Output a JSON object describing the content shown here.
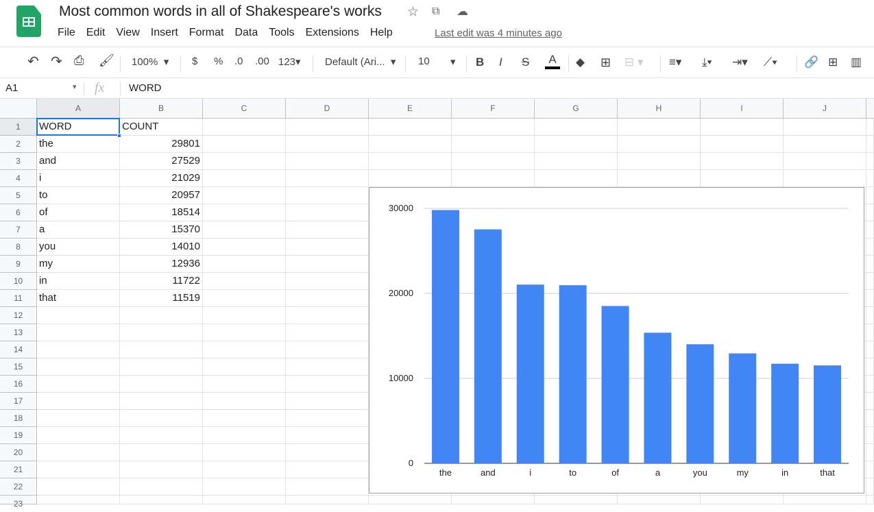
{
  "app": {
    "title": "Most common words in all of Shakespeare's works",
    "last_edit": "Last edit was 4 minutes ago",
    "menu": [
      "File",
      "Edit",
      "View",
      "Insert",
      "Format",
      "Data",
      "Tools",
      "Extensions",
      "Help"
    ]
  },
  "toolbar": {
    "zoom": "100%",
    "currency": "$",
    "percent": "%",
    "dec_decrease": ".0",
    "dec_increase": ".00",
    "format_more": "123",
    "font": "Default (Ari...",
    "font_size": "10",
    "bold": "B",
    "italic": "I",
    "strike": "S",
    "text_color": "A",
    "text_color_value": "#000000"
  },
  "formula_bar": {
    "cell_ref": "A1",
    "fx": "fx",
    "value": "WORD"
  },
  "columns": [
    "A",
    "B",
    "C",
    "D",
    "E",
    "F",
    "G",
    "H",
    "I",
    "J"
  ],
  "rows": [
    [
      "WORD",
      "COUNT"
    ],
    [
      "the",
      "29801"
    ],
    [
      "and",
      "27529"
    ],
    [
      "i",
      "21029"
    ],
    [
      "to",
      "20957"
    ],
    [
      "of",
      "18514"
    ],
    [
      "a",
      "15370"
    ],
    [
      "you",
      "14010"
    ],
    [
      "my",
      "12936"
    ],
    [
      "in",
      "11722"
    ],
    [
      "that",
      "11519"
    ]
  ],
  "row_count": 23,
  "selected_cell": "A1",
  "chart_data": {
    "type": "bar",
    "categories": [
      "the",
      "and",
      "i",
      "to",
      "of",
      "a",
      "you",
      "my",
      "in",
      "that"
    ],
    "values": [
      29801,
      27529,
      21029,
      20957,
      18514,
      15370,
      14010,
      12936,
      11722,
      11519
    ],
    "ylim": [
      0,
      30000
    ],
    "yticks": [
      "0",
      "10000",
      "20000",
      "30000"
    ],
    "grid": true,
    "color": "#4285f4"
  }
}
